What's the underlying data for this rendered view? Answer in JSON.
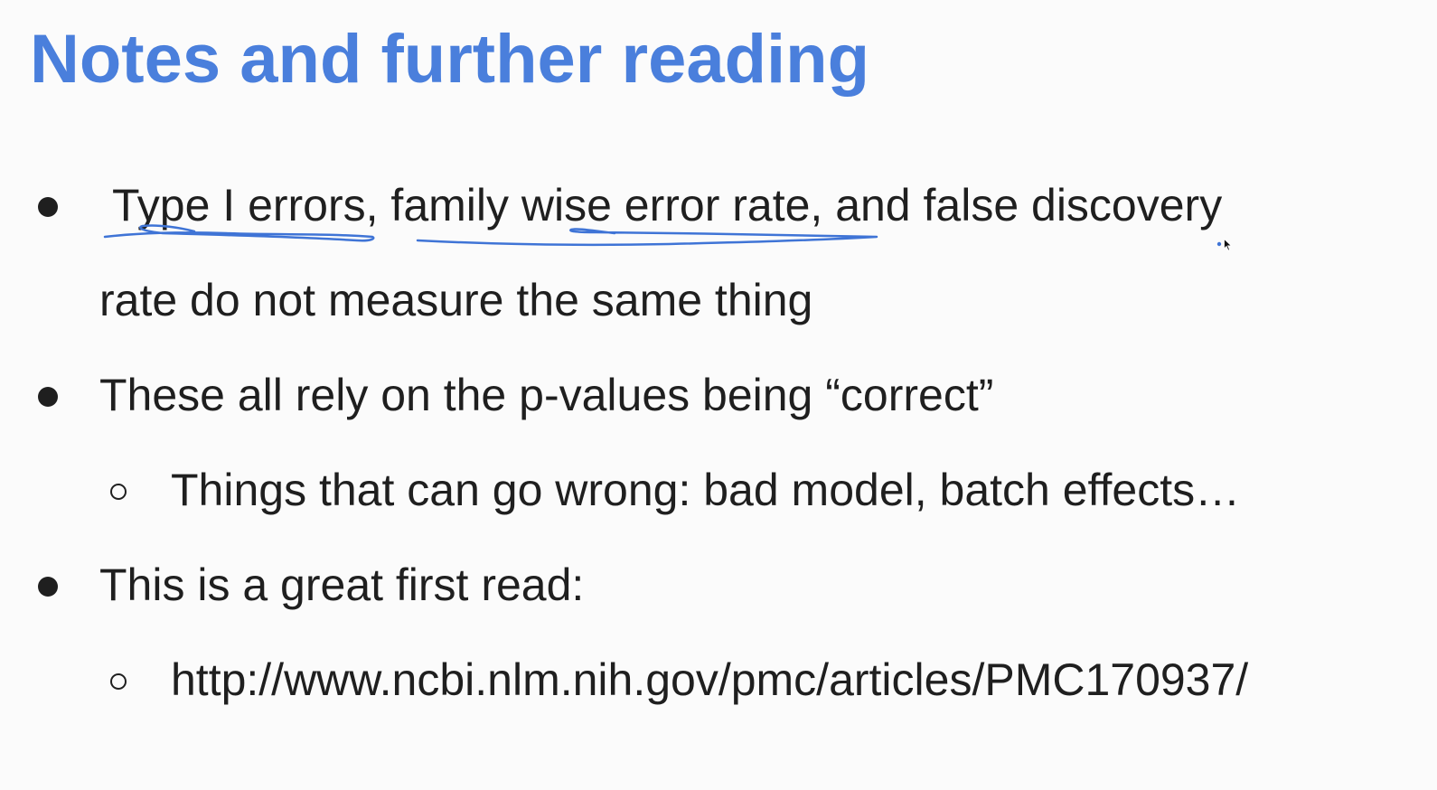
{
  "slide": {
    "title": "Notes and further reading",
    "colors": {
      "title": "#4a7fdc",
      "text": "#1f1f1f",
      "annotation_ink": "#3f74d6",
      "background": "#fbfbfb"
    },
    "bullets": [
      {
        "level": 1,
        "marker": "filled-circle",
        "lines": [
          "Type I errors, family wise error rate, and false discovery",
          "rate do not measure the same thing"
        ]
      },
      {
        "level": 1,
        "marker": "filled-circle",
        "lines": [
          "These all rely on the p-values being “correct”"
        ]
      },
      {
        "level": 2,
        "marker": "hollow-circle",
        "lines": [
          "Things that can go wrong: bad model, batch effects…"
        ]
      },
      {
        "level": 1,
        "marker": "filled-circle",
        "lines": [
          "This is a great first read:"
        ]
      },
      {
        "level": 2,
        "marker": "hollow-circle",
        "lines": [
          "http://www.ncbi.nlm.nih.gov/pmc/articles/PMC170937/"
        ]
      }
    ],
    "annotations": {
      "underlined_phrases": [
        "Type I errors",
        "family wise error rate"
      ],
      "cursor_icon": "arrow-pointer-icon"
    }
  }
}
